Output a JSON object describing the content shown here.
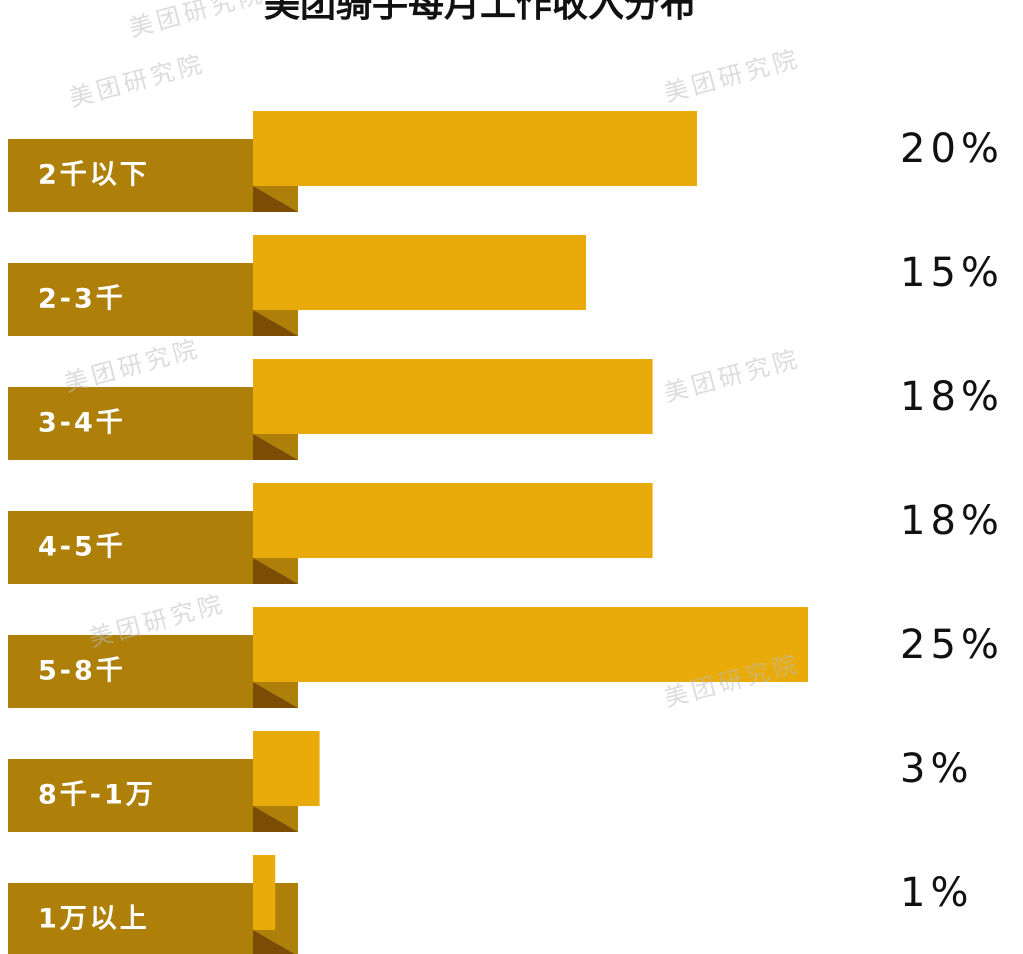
{
  "chart_data": {
    "type": "bar",
    "orientation": "horizontal",
    "title": "美团骑手每月工作收入分布",
    "watermark": "美团研究院",
    "categories": [
      "2千以下",
      "2-3千",
      "3-4千",
      "4-5千",
      "5-8千",
      "8千-1万",
      "1万以上"
    ],
    "values": [
      20,
      15,
      18,
      18,
      25,
      3,
      1
    ],
    "value_labels": [
      "20%",
      "15%",
      "18%",
      "18%",
      "25%",
      "3%",
      "1%"
    ],
    "color": "#e9ab0a",
    "label_color": "#ae800a"
  }
}
